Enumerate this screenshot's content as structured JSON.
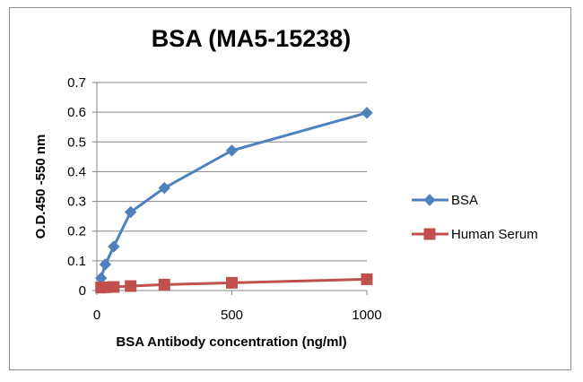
{
  "chart_data": {
    "type": "line",
    "title": "BSA  (MA5-15238)",
    "xlabel": "BSA Antibody concentration (ng/ml)",
    "ylabel": "O.D.450 -550 nm",
    "xlim": [
      0,
      1000
    ],
    "ylim": [
      0,
      0.7
    ],
    "x_ticks": [
      0,
      500,
      1000
    ],
    "y_ticks": [
      0,
      0.1,
      0.2,
      0.3,
      0.4,
      0.5,
      0.6,
      0.7
    ],
    "y_tick_labels": [
      "0",
      "0.1",
      "0.2",
      "0.3",
      "0.4",
      "0.5",
      "0.6",
      "0.7"
    ],
    "grid": "horizontal",
    "legend_position": "right",
    "series": [
      {
        "name": "BSA",
        "color": "#4f81bd",
        "marker": "diamond",
        "x": [
          15.6,
          31.25,
          62.5,
          125,
          250,
          500,
          1000
        ],
        "y": [
          0.042,
          0.088,
          0.148,
          0.264,
          0.345,
          0.471,
          0.598
        ]
      },
      {
        "name": "Human Serum",
        "color": "#c0504d",
        "marker": "square",
        "x": [
          15.6,
          31.25,
          62.5,
          125,
          250,
          500,
          1000
        ],
        "y": [
          0.01,
          0.011,
          0.012,
          0.015,
          0.02,
          0.026,
          0.038
        ]
      }
    ]
  }
}
